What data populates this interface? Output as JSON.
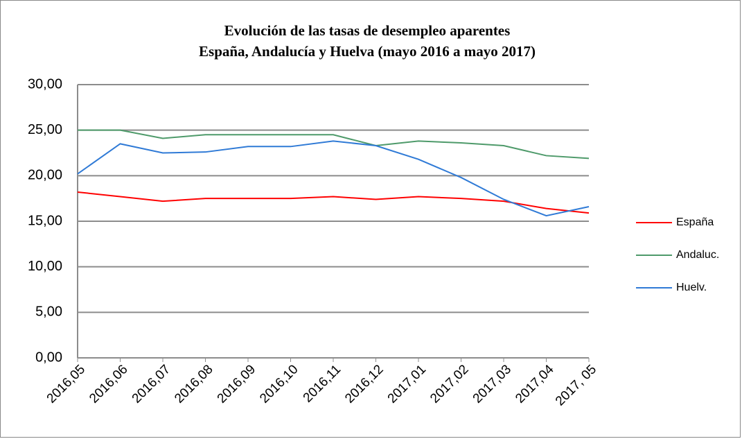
{
  "chart_data": {
    "type": "line",
    "title": [
      "Evolución de las tasas de desempleo aparentes",
      "España, Andalucía y Huelva (mayo 2016 a mayo 2017)"
    ],
    "categories": [
      "2016,05",
      "2016,06",
      "2016,07",
      "2016,08",
      "2016,09",
      "2016,10",
      "2016,11",
      "2016,12",
      "2017,01",
      "2017,02",
      "2017,03",
      "2017,04",
      "2017, 05"
    ],
    "series": [
      {
        "name": "España",
        "color": "#ff0000",
        "values": [
          18.2,
          17.7,
          17.2,
          17.5,
          17.5,
          17.5,
          17.7,
          17.4,
          17.7,
          17.5,
          17.2,
          16.4,
          15.9
        ]
      },
      {
        "name": "Andaluc.",
        "color": "#4e9a6a",
        "values": [
          25.0,
          25.0,
          24.1,
          24.5,
          24.5,
          24.5,
          24.5,
          23.3,
          23.8,
          23.6,
          23.3,
          22.2,
          21.9
        ]
      },
      {
        "name": "Huelv.",
        "color": "#2f7ad6",
        "values": [
          20.2,
          23.5,
          22.5,
          22.6,
          23.2,
          23.2,
          23.8,
          23.3,
          21.8,
          19.8,
          17.4,
          15.6,
          16.6
        ]
      }
    ],
    "ylim": [
      0,
      30
    ],
    "yticks": [
      {
        "value": 0,
        "label": "0,00"
      },
      {
        "value": 5,
        "label": "5,00"
      },
      {
        "value": 10,
        "label": "10,00"
      },
      {
        "value": 15,
        "label": "15,00"
      },
      {
        "value": 20,
        "label": "20,00"
      },
      {
        "value": 25,
        "label": "25,00"
      },
      {
        "value": 30,
        "label": "30,00"
      }
    ],
    "grid": true,
    "legend": "right"
  }
}
